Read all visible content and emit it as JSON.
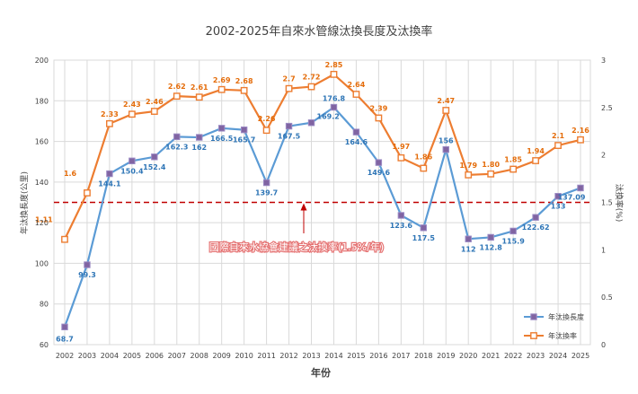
{
  "chart_data": {
    "type": "line",
    "title": "2002-2025年自來水管線汰換長度及汰換率",
    "xlabel": "年份",
    "ylabel": "年汰換長度(公里)",
    "y2label": "汰換率(%)",
    "ylim": [
      60,
      200
    ],
    "yticks": [
      60,
      80,
      100,
      120,
      140,
      160,
      180,
      200
    ],
    "y2lim": [
      0,
      3
    ],
    "y2ticks": [
      "0",
      "0.5",
      "1",
      "1.5",
      "2",
      "2.5",
      "3"
    ],
    "categories": [
      "2002",
      "2003",
      "2004",
      "2005",
      "2006",
      "2007",
      "2008",
      "2009",
      "2010",
      "2011",
      "2012",
      "2013",
      "2014",
      "2015",
      "2016",
      "2017",
      "2018",
      "2019",
      "2020",
      "2021",
      "2022",
      "2023",
      "2024",
      "2025"
    ],
    "series": [
      {
        "name": "年汰換長度",
        "axis": "left",
        "color": "#5b9bd5",
        "marker_color": "#8064a2",
        "values": [
          68.7,
          99.3,
          144.1,
          150.4,
          152.4,
          162.3,
          162,
          166.5,
          165.7,
          139.7,
          167.5,
          169.2,
          176.8,
          164.6,
          149.6,
          123.6,
          117.5,
          156,
          112,
          112.8,
          115.9,
          122.62,
          133,
          137.09
        ],
        "labels": [
          "68.7",
          "99.3",
          "144.1",
          "150.4",
          "152.4",
          "162.3",
          "162",
          "166.5",
          "165.7",
          "139.7",
          "167.5",
          "169.2",
          "176.8",
          "164.6",
          "149.6",
          "123.6",
          "117.5",
          "156",
          "112",
          "112.8",
          "115.9",
          "122.62",
          "133",
          "137.09"
        ]
      },
      {
        "name": "年汰換率",
        "axis": "right",
        "color": "#ed7d31",
        "values": [
          1.11,
          1.6,
          2.33,
          2.43,
          2.46,
          2.62,
          2.61,
          2.69,
          2.68,
          2.26,
          2.7,
          2.72,
          2.85,
          2.64,
          2.39,
          1.97,
          1.86,
          2.47,
          1.79,
          1.8,
          1.85,
          1.94,
          2.1,
          2.16
        ],
        "labels": [
          "1.11",
          "1.6",
          "2.33",
          "2.43",
          "2.46",
          "2.62",
          "2.61",
          "2.69",
          "2.68",
          "2.26",
          "2.7",
          "2.72",
          "2.85",
          "2.64",
          "2.39",
          "1.97",
          "1.86",
          "2.47",
          "1.79",
          "1.80",
          "1.85",
          "1.94",
          "2.1",
          "2.16"
        ]
      }
    ],
    "reference_line": {
      "axis": "right",
      "value": 1.5,
      "color": "#c00000",
      "annotation": "國際自來水協會建議之汰換率(1.5%/年)"
    },
    "grid": true,
    "legend_position": "bottom-right"
  }
}
